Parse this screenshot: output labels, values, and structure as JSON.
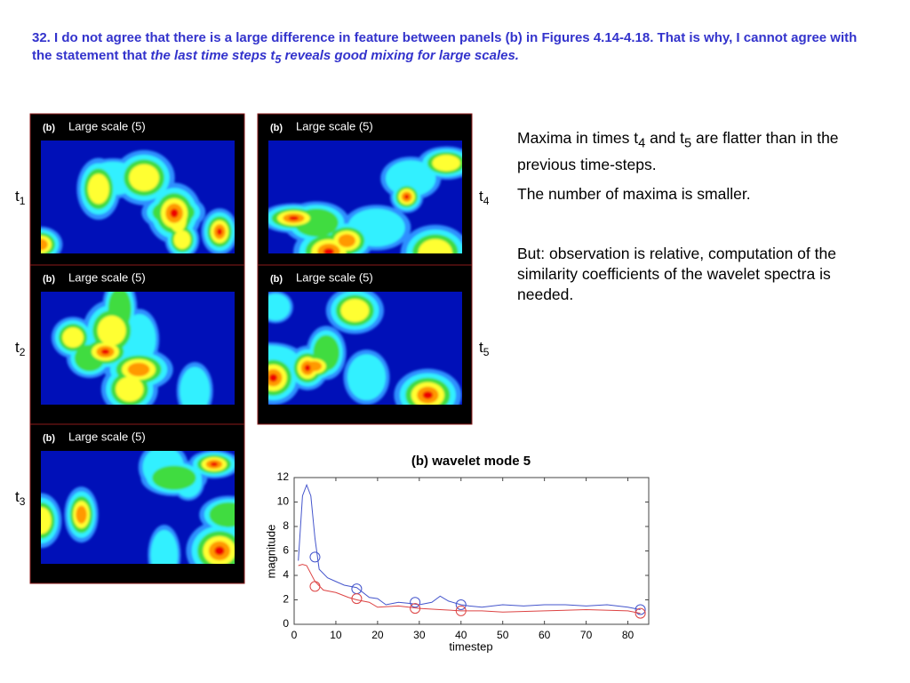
{
  "heading": {
    "text": "32. I do not agree that there is a large difference in feature between panels (b) in Figures 4.14-4.18. That is why, I cannot agree with the statement that",
    "emphasis": "the last time steps t",
    "emphasis_sub": "5",
    "emphasis_end": " reveals good mixing for large scales."
  },
  "panels": [
    {
      "tag": "(b)",
      "title": "Large scale (5)",
      "time": "t",
      "time_sub": "1"
    },
    {
      "tag": "(b)",
      "title": "Large scale (5)",
      "time": "t",
      "time_sub": "2"
    },
    {
      "tag": "(b)",
      "title": "Large scale (5)",
      "time": "t",
      "time_sub": "3"
    },
    {
      "tag": "(b)",
      "title": "Large scale (5)",
      "time": "t",
      "time_sub": "4"
    },
    {
      "tag": "(b)",
      "title": "Large scale (5)",
      "time": "t",
      "time_sub": "5"
    }
  ],
  "notes": [
    {
      "runs": [
        {
          "text": "Maxima in times t"
        },
        {
          "text": "4",
          "sub": true
        },
        {
          "text": " and t"
        },
        {
          "text": "5",
          "sub": true
        },
        {
          "text": " are flatter than in the previous time-steps."
        }
      ]
    },
    {
      "runs": [
        {
          "text": "The number of maxima is smaller."
        }
      ]
    },
    {
      "runs": [
        {
          "text": "But: observation is relative, computation of the similarity coefficients of the wavelet spectra is needed."
        }
      ]
    }
  ],
  "chart_data": {
    "type": "line",
    "title": "(b)  wavelet mode 5",
    "x_label": "timestep",
    "y_label": "magnitude",
    "xlim": [
      0,
      85
    ],
    "ylim": [
      0,
      12
    ],
    "xticks": [
      0,
      10,
      20,
      30,
      40,
      50,
      60,
      70,
      80
    ],
    "yticks": [
      0,
      2,
      4,
      6,
      8,
      10,
      12
    ],
    "series": [
      {
        "color": "#4455cc",
        "x": [
          1,
          2,
          3,
          4,
          5,
          6,
          8,
          10,
          12,
          15,
          18,
          20,
          22,
          25,
          28,
          30,
          33,
          35,
          37,
          40,
          42,
          45,
          50,
          55,
          60,
          65,
          70,
          75,
          80,
          83
        ],
        "values": [
          5.2,
          10.5,
          11.4,
          10.5,
          7,
          4.5,
          3.8,
          3.5,
          3.2,
          3.0,
          2.2,
          2.1,
          1.6,
          1.8,
          1.7,
          1.6,
          1.8,
          2.3,
          1.9,
          1.6,
          1.5,
          1.4,
          1.6,
          1.5,
          1.6,
          1.6,
          1.5,
          1.6,
          1.4,
          1.2
        ],
        "markers": {
          "x": [
            5,
            15,
            29,
            40,
            83
          ],
          "values": [
            5.5,
            2.9,
            1.8,
            1.6,
            1.2
          ]
        }
      },
      {
        "color": "#dd4444",
        "x": [
          1,
          2,
          3,
          5,
          7,
          10,
          13,
          15,
          18,
          20,
          25,
          30,
          35,
          40,
          45,
          50,
          60,
          70,
          80,
          83
        ],
        "values": [
          4.8,
          4.9,
          4.8,
          3.5,
          2.8,
          2.6,
          2.2,
          2.0,
          1.8,
          1.4,
          1.5,
          1.3,
          1.2,
          1.1,
          1.1,
          1.0,
          1.1,
          1.2,
          1.1,
          0.9
        ],
        "markers": {
          "x": [
            5,
            15,
            29,
            40,
            83
          ],
          "values": [
            3.1,
            2.1,
            1.3,
            1.1,
            0.9
          ]
        }
      }
    ]
  }
}
